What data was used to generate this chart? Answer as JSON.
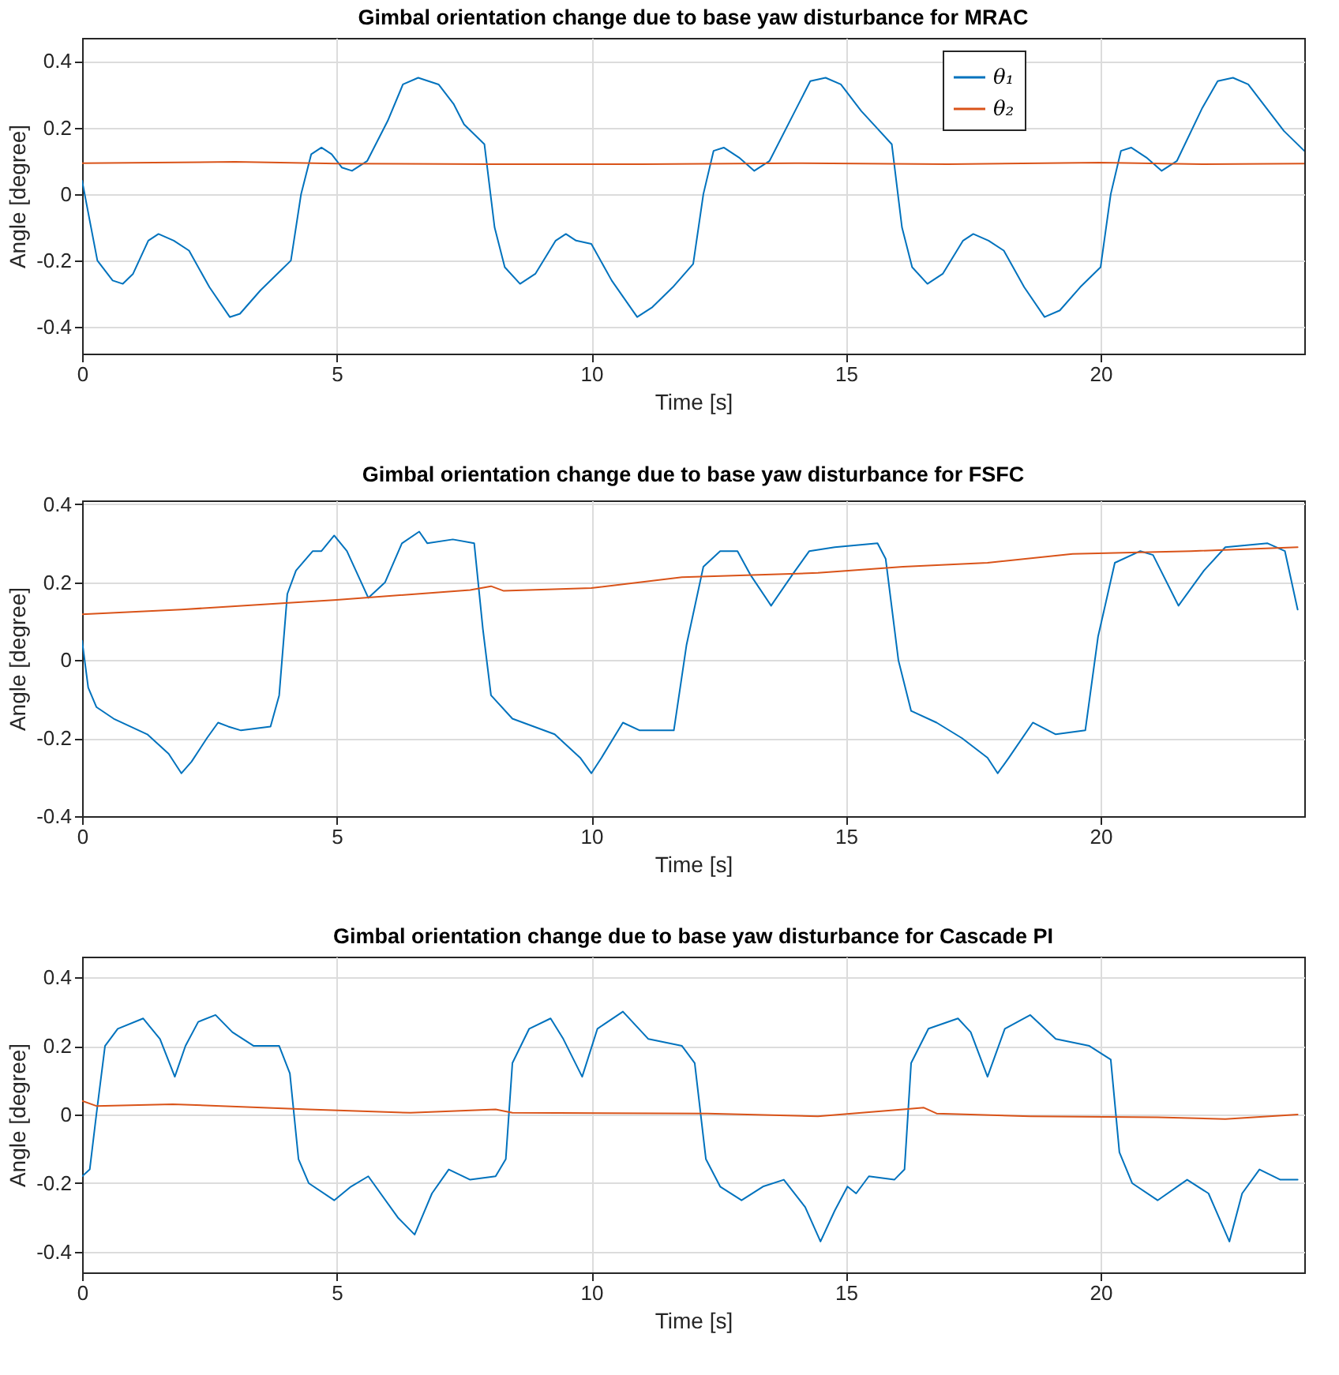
{
  "chart_data": [
    {
      "type": "line",
      "title": "Gimbal orientation change due to base yaw disturbance for MRAC",
      "xlabel": "Time [s]",
      "ylabel": "Angle [degree]",
      "xlim": [
        0,
        24
      ],
      "xticks": [
        0,
        5,
        10,
        15,
        20
      ],
      "ylim": [
        -0.48,
        0.47
      ],
      "yticks": [
        -0.4,
        -0.2,
        0,
        0.2,
        0.4
      ],
      "grid": true,
      "legend": "top right",
      "series": [
        {
          "name": "θ₁",
          "color": "#0072bd",
          "x": [
            0,
            0.3,
            0.6,
            0.8,
            1.0,
            1.3,
            1.5,
            1.8,
            2.1,
            2.5,
            2.9,
            3.1,
            3.5,
            3.9,
            4.1,
            4.3,
            4.5,
            4.7,
            4.9,
            5.1,
            5.3,
            5.6,
            6.0,
            6.3,
            6.6,
            7.0,
            7.3,
            7.5,
            7.9,
            8.1,
            8.3,
            8.6,
            8.9,
            9.3,
            9.5,
            9.7,
            10.0,
            10.4,
            10.9,
            11.2,
            11.6,
            12.0,
            12.2,
            12.4,
            12.6,
            12.9,
            13.2,
            13.5,
            14.0,
            14.3,
            14.6,
            14.9,
            15.3,
            15.6,
            15.9,
            16.1,
            16.3,
            16.6,
            16.9,
            17.3,
            17.5,
            17.8,
            18.1,
            18.5,
            18.9,
            19.2,
            19.6,
            20.0,
            20.2,
            20.4,
            20.6,
            20.9,
            21.2,
            21.5,
            22.0,
            22.3,
            22.6,
            22.9,
            23.3,
            23.6,
            24.0
          ],
          "values": [
            0.04,
            -0.2,
            -0.26,
            -0.27,
            -0.24,
            -0.14,
            -0.12,
            -0.14,
            -0.17,
            -0.28,
            -0.37,
            -0.36,
            -0.29,
            -0.23,
            -0.2,
            0.0,
            0.12,
            0.14,
            0.12,
            0.08,
            0.07,
            0.1,
            0.22,
            0.33,
            0.35,
            0.33,
            0.27,
            0.21,
            0.15,
            -0.1,
            -0.22,
            -0.27,
            -0.24,
            -0.14,
            -0.12,
            -0.14,
            -0.15,
            -0.26,
            -0.37,
            -0.34,
            -0.28,
            -0.21,
            0.0,
            0.13,
            0.14,
            0.11,
            0.07,
            0.1,
            0.25,
            0.34,
            0.35,
            0.33,
            0.25,
            0.2,
            0.15,
            -0.1,
            -0.22,
            -0.27,
            -0.24,
            -0.14,
            -0.12,
            -0.14,
            -0.17,
            -0.28,
            -0.37,
            -0.35,
            -0.28,
            -0.22,
            0.0,
            0.13,
            0.14,
            0.11,
            0.07,
            0.1,
            0.26,
            0.34,
            0.35,
            0.33,
            0.25,
            0.19,
            0.13
          ]
        },
        {
          "name": "θ₂",
          "color": "#d95319",
          "x": [
            0,
            3,
            5,
            8,
            11,
            14,
            17,
            20,
            22,
            24
          ],
          "values": [
            0.093,
            0.097,
            0.092,
            0.09,
            0.09,
            0.093,
            0.09,
            0.095,
            0.09,
            0.092
          ]
        }
      ]
    },
    {
      "type": "line",
      "title": "Gimbal orientation change due to base yaw disturbance for FSFC",
      "xlabel": "Time [s]",
      "ylabel": "Angle [degree]",
      "xlim": [
        0,
        24
      ],
      "xticks": [
        0,
        5,
        10,
        15,
        20
      ],
      "ylim": [
        -0.4,
        0.41
      ],
      "yticks": [
        -0.4,
        -0.2,
        0,
        0.2,
        0.4
      ],
      "grid": true,
      "series": [
        {
          "color": "#0072bd",
          "x": [
            0,
            0.12,
            0.28,
            0.62,
            1.28,
            1.7,
            1.95,
            2.15,
            2.45,
            2.67,
            2.87,
            3.12,
            3.7,
            3.87,
            4.03,
            4.2,
            4.53,
            4.7,
            4.95,
            5.2,
            5.62,
            5.95,
            6.28,
            6.62,
            6.78,
            7.28,
            7.7,
            7.87,
            8.03,
            8.45,
            9.28,
            9.78,
            10.0,
            10.2,
            10.62,
            10.95,
            11.62,
            11.87,
            12.2,
            12.53,
            12.87,
            13.12,
            13.53,
            13.95,
            14.28,
            14.78,
            15.62,
            15.78,
            16.03,
            16.28,
            16.78,
            17.28,
            17.78,
            17.98,
            18.2,
            18.67,
            19.12,
            19.7,
            19.95,
            20.28,
            20.78,
            21.03,
            21.53,
            22.03,
            22.45,
            23.28,
            23.62,
            23.87
          ],
          "values": [
            0.05,
            -0.07,
            -0.12,
            -0.15,
            -0.19,
            -0.24,
            -0.29,
            -0.26,
            -0.2,
            -0.16,
            -0.17,
            -0.18,
            -0.17,
            -0.09,
            0.17,
            0.23,
            0.28,
            0.28,
            0.32,
            0.28,
            0.16,
            0.2,
            0.3,
            0.33,
            0.3,
            0.31,
            0.3,
            0.08,
            -0.09,
            -0.15,
            -0.19,
            -0.25,
            -0.29,
            -0.25,
            -0.16,
            -0.18,
            -0.18,
            0.04,
            0.24,
            0.28,
            0.28,
            0.22,
            0.14,
            0.22,
            0.28,
            0.29,
            0.3,
            0.26,
            0,
            -0.13,
            -0.16,
            -0.2,
            -0.25,
            -0.29,
            -0.25,
            -0.16,
            -0.19,
            -0.18,
            0.06,
            0.25,
            0.28,
            0.27,
            0.14,
            0.23,
            0.29,
            0.3,
            0.28,
            0.13
          ]
        },
        {
          "color": "#d95319",
          "x": [
            0,
            1.95,
            5,
            7.62,
            8.03,
            8.28,
            10,
            11.78,
            14.45,
            16.12,
            17.78,
            19.45,
            21.78,
            23.87
          ],
          "values": [
            0.118,
            0.13,
            0.155,
            0.18,
            0.19,
            0.178,
            0.185,
            0.213,
            0.224,
            0.24,
            0.25,
            0.273,
            0.28,
            0.29
          ]
        }
      ]
    },
    {
      "type": "line",
      "title": "Gimbal orientation change due to base yaw disturbance for Cascade PI",
      "xlabel": "Time [s]",
      "ylabel": "Angle [degree]",
      "xlim": [
        0,
        24
      ],
      "xticks": [
        0,
        5,
        10,
        15,
        20
      ],
      "ylim": [
        -0.46,
        0.46
      ],
      "yticks": [
        -0.4,
        -0.2,
        0,
        0.2,
        0.4
      ],
      "grid": true,
      "series": [
        {
          "color": "#0072bd",
          "x": [
            0,
            0.15,
            0.28,
            0.45,
            0.7,
            1.2,
            1.53,
            1.82,
            2.03,
            2.28,
            2.62,
            2.95,
            3.37,
            3.87,
            4.08,
            4.25,
            4.45,
            4.95,
            5.28,
            5.62,
            6.2,
            6.53,
            6.87,
            7.2,
            7.62,
            8.12,
            8.32,
            8.45,
            8.78,
            9.2,
            9.45,
            9.82,
            10.12,
            10.62,
            11.12,
            11.78,
            12.03,
            12.25,
            12.53,
            12.95,
            13.37,
            13.78,
            14.2,
            14.5,
            14.78,
            15.03,
            15.2,
            15.45,
            15.95,
            16.15,
            16.28,
            16.62,
            17.2,
            17.45,
            17.78,
            18.12,
            18.62,
            19.12,
            19.78,
            20.2,
            20.37,
            20.62,
            21.12,
            21.7,
            22.12,
            22.53,
            22.78,
            23.12,
            23.53,
            23.87
          ],
          "values": [
            -0.18,
            -0.16,
            0,
            0.2,
            0.25,
            0.28,
            0.22,
            0.11,
            0.2,
            0.27,
            0.29,
            0.24,
            0.2,
            0.2,
            0.12,
            -0.13,
            -0.2,
            -0.25,
            -0.21,
            -0.18,
            -0.3,
            -0.35,
            -0.23,
            -0.16,
            -0.19,
            -0.18,
            -0.13,
            0.15,
            0.25,
            0.28,
            0.22,
            0.11,
            0.25,
            0.3,
            0.22,
            0.2,
            0.15,
            -0.13,
            -0.21,
            -0.25,
            -0.21,
            -0.19,
            -0.27,
            -0.37,
            -0.28,
            -0.21,
            -0.23,
            -0.18,
            -0.19,
            -0.16,
            0.15,
            0.25,
            0.28,
            0.24,
            0.11,
            0.25,
            0.29,
            0.22,
            0.2,
            0.16,
            -0.11,
            -0.2,
            -0.25,
            -0.19,
            -0.23,
            -0.37,
            -0.23,
            -0.16,
            -0.19,
            -0.19
          ]
        },
        {
          "color": "#d95319",
          "x": [
            0,
            0.28,
            1.78,
            4.45,
            6.45,
            8.12,
            8.45,
            12.28,
            14.45,
            16.12,
            16.53,
            16.78,
            18.62,
            21.12,
            22.45,
            23.87
          ],
          "values": [
            0.04,
            0.025,
            0.03,
            0.015,
            0.005,
            0.015,
            0.005,
            0.003,
            -0.005,
            0.015,
            0.02,
            0.003,
            -0.005,
            -0.008,
            -0.013,
            0
          ]
        }
      ]
    }
  ]
}
